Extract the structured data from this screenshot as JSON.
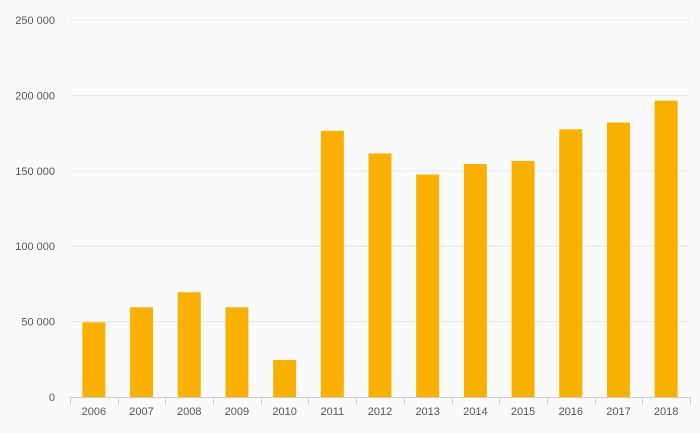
{
  "chart_data": {
    "type": "bar",
    "categories": [
      "2006",
      "2007",
      "2008",
      "2009",
      "2010",
      "2011",
      "2012",
      "2013",
      "2014",
      "2015",
      "2016",
      "2017",
      "2018"
    ],
    "values": [
      49500,
      59500,
      69500,
      59500,
      24500,
      176500,
      161500,
      147500,
      154500,
      156500,
      177500,
      182000,
      196500
    ],
    "ylim": [
      0,
      250000
    ],
    "yticks": [
      0,
      50000,
      100000,
      150000,
      200000,
      250000
    ],
    "ytick_labels": [
      "0",
      "50 000",
      "100 000",
      "150 000",
      "200 000",
      "250 000"
    ],
    "grid": true,
    "bar_color": "#f9b000",
    "grid_color": "#e6e6e6",
    "axis_color": "#cccccc",
    "text_color": "#555555"
  }
}
